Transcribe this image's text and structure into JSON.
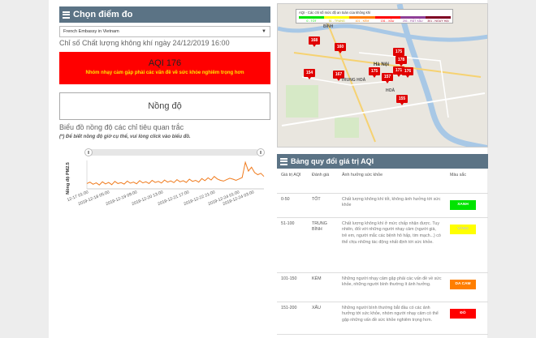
{
  "left": {
    "panel_title": "Chọn điểm đo",
    "station": "French Embassy in Vietnam",
    "aqi_date": "Chỉ số Chất lượng không khí ngày 24/12/2019 16:00",
    "aqi_value": "AQI 176",
    "aqi_message": "Nhóm nhạy cảm gặp phải các vấn đề về sức khỏe nghiêm trọng hơn",
    "aqi_color": "#ff0000",
    "concentration_title": "Nồng độ",
    "chart_title": "Biểu đồ nồng độ các chỉ tiêu quan trắc",
    "chart_hint": "(*) Để biết nồng độ giờ cụ thể, vui lòng click vào biểu đồ."
  },
  "chart_data": {
    "type": "line",
    "ylabel": "Nồng độ PM2.5",
    "x_ticks": [
      "12-17 01:00",
      "2019-12-18 05:00",
      "2019-12-19 09:00",
      "2019-12-20 13:00",
      "2019-12-21 17:00",
      "2019-12-22 21:00",
      "2019-12-24 01:00",
      "2019-12-24 03:00"
    ],
    "series": [
      {
        "color": "#f07b1d",
        "values": [
          30,
          38,
          26,
          34,
          22,
          40,
          28,
          36,
          24,
          42,
          30,
          35,
          27,
          44,
          32,
          38,
          29,
          46,
          34,
          40,
          30,
          48,
          36,
          42,
          33,
          50,
          38,
          45,
          35,
          52,
          40,
          46,
          36,
          55,
          42,
          48,
          38,
          58,
          46,
          62,
          50,
          70,
          56,
          48,
          44,
          52,
          60,
          55,
          48,
          56,
          64,
          150,
          100,
          122,
          92,
          80,
          88,
          70
        ]
      }
    ]
  },
  "map": {
    "legend_title": "AQI - Các chỉ số mức độ an toàn của không khí",
    "legend_levels": [
      {
        "label": "0 - TỐT",
        "color": "#00e400"
      },
      {
        "label": "51 - TRUNG",
        "color": "#ffff00"
      },
      {
        "label": "101 - KÉM",
        "color": "#ff7e00"
      },
      {
        "label": "151 - XẤU",
        "color": "#ff0000"
      },
      {
        "label": "201 - RẤT XẤU",
        "color": "#8f3f97"
      },
      {
        "label": "301 - NGUY HẠI",
        "color": "#7e0023"
      }
    ],
    "markers": [
      "168",
      "160",
      "175",
      "178",
      "171",
      "154",
      "167",
      "175",
      "176",
      "157",
      "155"
    ],
    "city_label": "Hà Nội",
    "area_labels": [
      "TRUNG HOÀ",
      "BÌNH",
      "HOÀ"
    ]
  },
  "table": {
    "title": "Bảng quy đổi giá trị AQI",
    "headers": [
      "Giá trị AQI",
      "Đánh giá",
      "Ảnh hưởng sức khỏe",
      "Màu sắc"
    ],
    "rows": [
      {
        "range": "0-50",
        "rating": "TỐT",
        "effect": "Chất lượng không khí tốt, không ảnh hưởng tới sức khỏe",
        "color_label": "XANH",
        "color": "#00e400",
        "text_color": "#ffffff"
      },
      {
        "range": "51-100",
        "rating": "TRUNG BÌNH",
        "effect": "Chất lượng không khí ở mức chấp nhận được. Tuy nhiên, đối với những người nhạy cảm (người già, trẻ em, người mắc các bệnh hô hấp, tim mạch...) có thể chịu những tác động nhất định tới sức khỏe.",
        "color_label": "VÀNG",
        "color": "#ffff00",
        "text_color": "#c9c9c9"
      },
      {
        "range": "101-150",
        "rating": "KÉM",
        "effect": "Những người nhạy cảm gặp phải các vấn đề về sức khỏe, những người bình thường ít ảnh hưởng.",
        "color_label": "DA CAM",
        "color": "#ff7e00",
        "text_color": "#ffffff"
      },
      {
        "range": "151-200",
        "rating": "XẤU",
        "effect": "Những người bình thường bắt đầu có các ảnh hưởng tới sức khỏe, nhóm người nhạy cảm có thể gặp những vấn đề sức khỏe nghiêm trọng hơn.",
        "color_label": "ĐỎ",
        "color": "#ff0000",
        "text_color": "#ffffff"
      }
    ]
  }
}
